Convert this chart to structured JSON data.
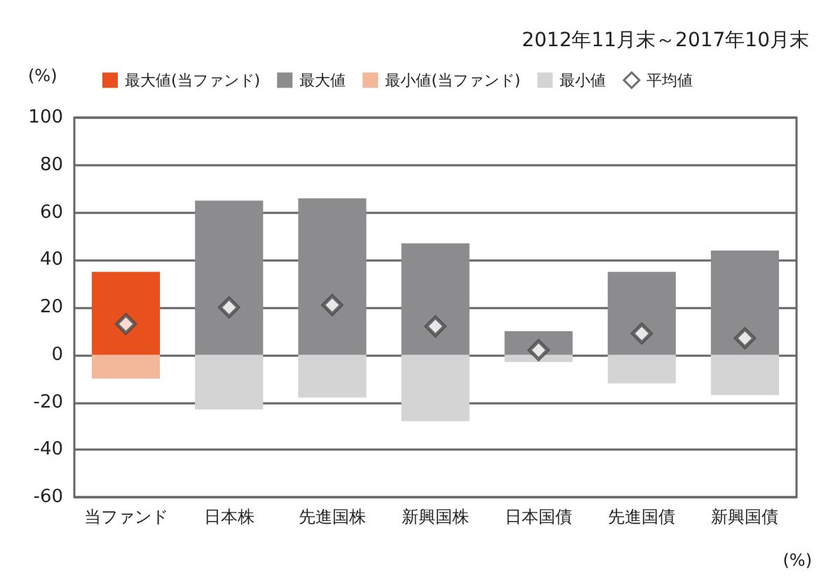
{
  "chart_data": {
    "type": "bar",
    "subtitle": "2012年11月末～2017年10月末",
    "ylabel": "(%)",
    "annotations": [
      "(%)"
    ],
    "categories": [
      "当ファンド",
      "日本株",
      "先進国株",
      "新興国株",
      "日本国債",
      "先進国債",
      "新興国債"
    ],
    "stacked": true,
    "ylim": [
      -60,
      100
    ],
    "yticks": [
      -60,
      -40,
      -20,
      0,
      20,
      40,
      60,
      80,
      100
    ],
    "grid": "y",
    "legend": "top",
    "series": [
      {
        "name": "最大値(当ファンド)",
        "color": "#e8501e",
        "values": [
          35,
          null,
          null,
          null,
          null,
          null,
          null
        ]
      },
      {
        "name": "最大値",
        "color": "#8c8c8e",
        "values": [
          null,
          65,
          66,
          47,
          10,
          35,
          44
        ]
      },
      {
        "name": "最小値(当ファンド)",
        "color": "#f2b899",
        "values": [
          -10,
          null,
          null,
          null,
          null,
          null,
          null
        ]
      },
      {
        "name": "最小値",
        "color": "#d4d4d4",
        "values": [
          null,
          -23,
          -18,
          -28,
          -3,
          -12,
          -17
        ]
      },
      {
        "name": "平均値",
        "type": "scatter",
        "marker": "diamond",
        "color": "#ffffff",
        "x": [
          "当ファンド",
          "日本株",
          "先進国株",
          "新興国株",
          "日本国債",
          "先進国債",
          "新興国債"
        ],
        "values": [
          13,
          20,
          21,
          12,
          2,
          9,
          7
        ]
      }
    ]
  }
}
